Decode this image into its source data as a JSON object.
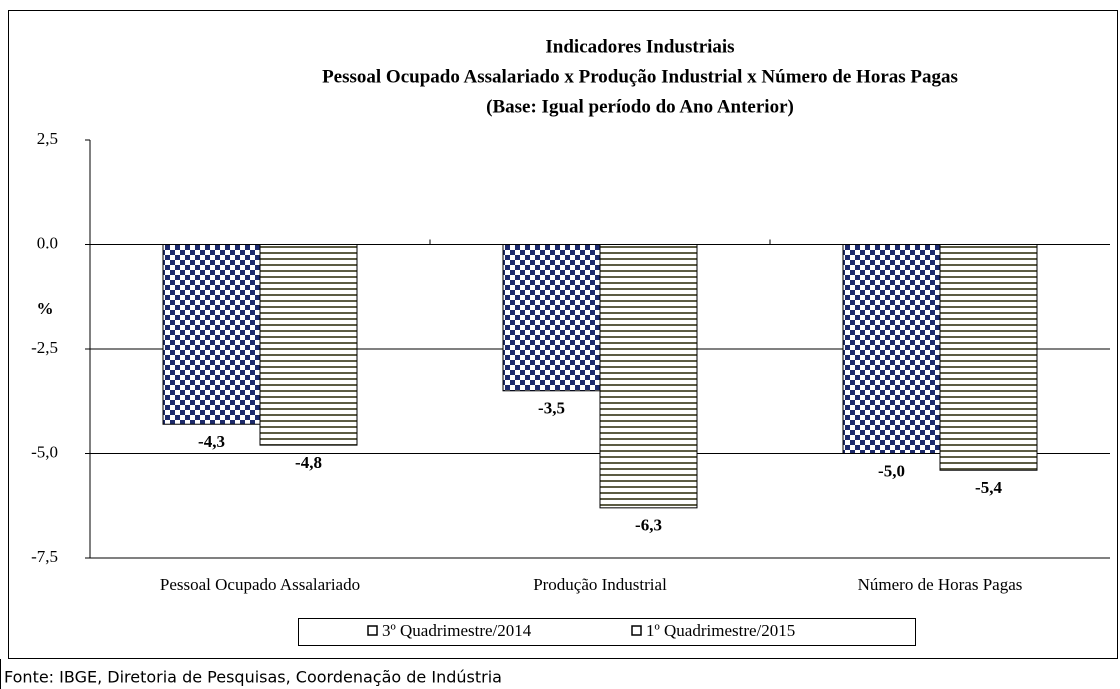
{
  "chart_data": {
    "type": "bar",
    "title": "Indicadores Industriais",
    "subtitle": [
      "Pessoal Ocupado  Assalariado x Produção Industrial x Número de Horas Pagas",
      "(Base: Igual período do Ano Anterior)"
    ],
    "y_label": "%",
    "categories": [
      "Pessoal Ocupado Assalariado",
      "Produção Industrial",
      "Número de Horas Pagas"
    ],
    "series": [
      {
        "name": "3º Quadrimestre/2014",
        "color": "#1c2a6b",
        "pattern": "checker",
        "values": [
          -4.3,
          -3.5,
          -5.0
        ],
        "value_labels": [
          "-4,3",
          "-3,5",
          "-5,0"
        ]
      },
      {
        "name": "1º Quadrimestre/2015",
        "color": "#5c5c44",
        "pattern": "stripes",
        "values": [
          -4.8,
          -6.3,
          -5.4
        ],
        "value_labels": [
          "-4,8",
          "-6,3",
          "-5,4"
        ]
      }
    ],
    "ylim": [
      -7.5,
      2.5
    ],
    "yticks": [
      {
        "value": 2.5,
        "label": "2,5"
      },
      {
        "value": 0,
        "label": "0.0"
      },
      {
        "value": -2.5,
        "label": "-2,5"
      },
      {
        "value": -5.0,
        "label": "-5,0"
      },
      {
        "value": -7.5,
        "label": "-7,5"
      }
    ],
    "grid": true,
    "legend_position": "bottom",
    "source": "Fonte: IBGE, Diretoria de Pesquisas, Coordenação de Indústria"
  }
}
